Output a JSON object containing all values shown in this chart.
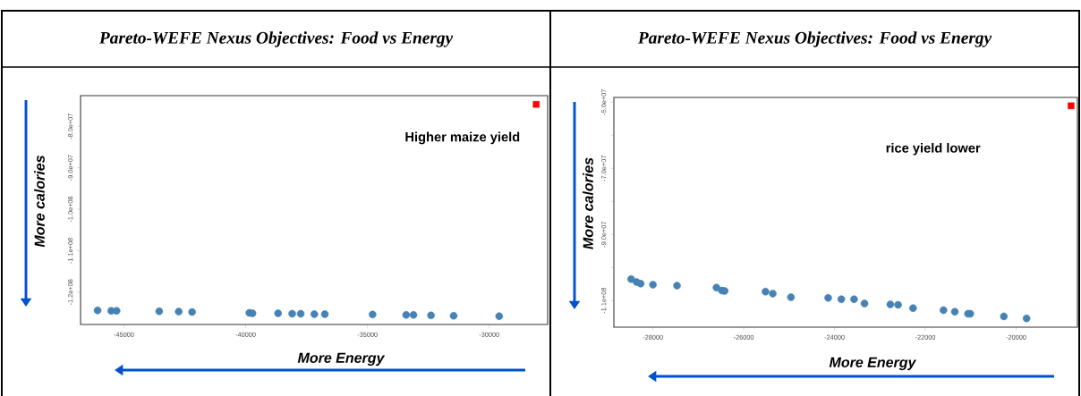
{
  "chart_data": [
    {
      "type": "scatter",
      "title": "Pareto-WEFE Nexus Objectives: Food vs Energy",
      "xlabel": "More Energy",
      "ylabel": "More calories",
      "annotations": [
        "Higher maize yield"
      ],
      "grid": false,
      "xlim": [
        -46780,
        -27600
      ],
      "ylim": [
        -127800000,
        -72600000
      ],
      "xticks": [
        -45000,
        -40000,
        -35000,
        -30000
      ],
      "yticks": [
        {
          "value": -80000000,
          "label": "-8.0e+07"
        },
        {
          "value": -90000000,
          "label": "-9.0e+07"
        },
        {
          "value": -100000000,
          "label": "-1.0e+08"
        },
        {
          "value": -110000000,
          "label": "-1.1e+08"
        },
        {
          "value": -120000000,
          "label": "-1.2e+08"
        }
      ],
      "series": [
        {
          "color": "#4682b4",
          "marker": "circle",
          "x": [
            -46080,
            -45520,
            -45300,
            -43550,
            -42750,
            -42200,
            -39850,
            -39720,
            -38670,
            -38090,
            -37740,
            -37180,
            -36750,
            -34790,
            -33410,
            -33110,
            -32390,
            -31460,
            -29590
          ],
          "values": [
            -124400000,
            -124500000,
            -124500000,
            -124600000,
            -124700000,
            -124800000,
            -125000000,
            -125100000,
            -125100000,
            -125200000,
            -125200000,
            -125300000,
            -125300000,
            -125400000,
            -125500000,
            -125500000,
            -125600000,
            -125700000,
            -125800000
          ]
        },
        {
          "color": "#ff0000",
          "marker": "square",
          "x": [
            -28070
          ],
          "values": [
            -74700000
          ]
        }
      ]
    },
    {
      "type": "scatter",
      "title": "Pareto-WEFE Nexus Objectives: Food vs Energy",
      "xlabel": "More Energy",
      "ylabel": "More calories",
      "annotations": [
        "rice yield lower"
      ],
      "grid": false,
      "xlim": [
        -28860,
        -18650
      ],
      "ylim": [
        -118060000,
        -48570000
      ],
      "xticks": [
        -28000,
        -26000,
        -24000,
        -22000,
        -20000
      ],
      "yticks": [
        {
          "value": -50000000,
          "label": "-5.0e+07"
        },
        {
          "value": -60000000,
          "label": null
        },
        {
          "value": -70000000,
          "label": "-7.0e+07"
        },
        {
          "value": -80000000,
          "label": null
        },
        {
          "value": -90000000,
          "label": "-9.0e+07"
        },
        {
          "value": -100000000,
          "label": null
        },
        {
          "value": -110000000,
          "label": "-1.1e+08"
        }
      ],
      "series": [
        {
          "color": "#4682b4",
          "marker": "circle",
          "x": [
            -28480,
            -28360,
            -28270,
            -28000,
            -27470,
            -26600,
            -26480,
            -26420,
            -25520,
            -25360,
            -24960,
            -24140,
            -23850,
            -23570,
            -23340,
            -22770,
            -22600,
            -22270,
            -21600,
            -21350,
            -21060,
            -21010,
            -20270,
            -19770
          ],
          "values": [
            -103500000,
            -104400000,
            -104900000,
            -105200000,
            -105500000,
            -106100000,
            -107000000,
            -107100000,
            -107300000,
            -107900000,
            -109000000,
            -109200000,
            -109600000,
            -109600000,
            -110900000,
            -111200000,
            -111300000,
            -112300000,
            -112900000,
            -113400000,
            -114000000,
            -114000000,
            -114800000,
            -115400000
          ]
        },
        {
          "color": "#ff0000",
          "marker": "square",
          "x": [
            -18790
          ],
          "values": [
            -51100000
          ]
        }
      ]
    }
  ]
}
